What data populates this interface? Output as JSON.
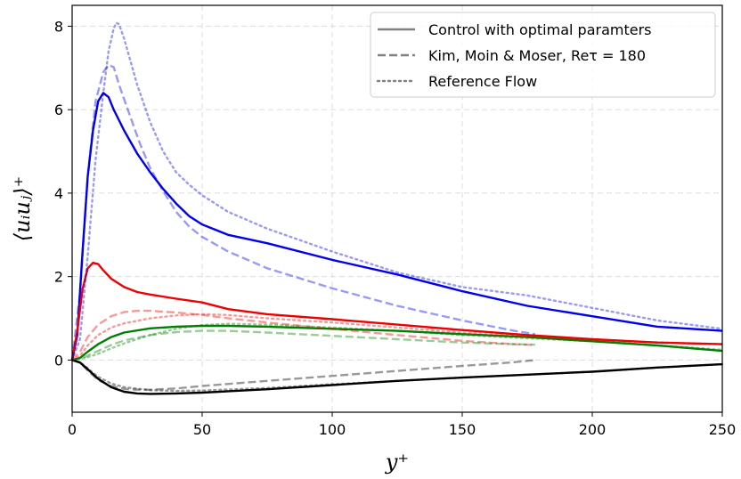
{
  "chart_data": {
    "type": "line",
    "xlabel": "y⁺",
    "ylabel": "⟨uᵢuⱼ⟩⁺",
    "xlim": [
      0,
      250
    ],
    "ylim": [
      -1.25,
      8.5
    ],
    "xticks": [
      0,
      50,
      100,
      150,
      200,
      250
    ],
    "yticks": [
      0,
      2,
      4,
      6,
      8
    ],
    "grid": true,
    "legend_position": "top-right",
    "legend": [
      {
        "label": "Control with optimal paramters",
        "style": "solid",
        "color": "#808080"
      },
      {
        "label": "Kim, Moin & Moser, Reτ = 180",
        "style": "dashed",
        "color": "#808080"
      },
      {
        "label": "Reference Flow",
        "style": "dotted",
        "color": "#808080"
      }
    ],
    "series": [
      {
        "color": "#0000ee",
        "style": "solid",
        "opacity": 1.0,
        "points": [
          [
            0,
            0
          ],
          [
            2,
            0.6
          ],
          [
            4,
            2.6
          ],
          [
            6,
            4.4
          ],
          [
            8,
            5.5
          ],
          [
            10,
            6.2
          ],
          [
            12,
            6.4
          ],
          [
            14,
            6.3
          ],
          [
            16,
            6.0
          ],
          [
            20,
            5.5
          ],
          [
            25,
            4.95
          ],
          [
            30,
            4.5
          ],
          [
            35,
            4.1
          ],
          [
            40,
            3.75
          ],
          [
            45,
            3.45
          ],
          [
            50,
            3.25
          ],
          [
            60,
            3.0
          ],
          [
            75,
            2.8
          ],
          [
            100,
            2.4
          ],
          [
            125,
            2.05
          ],
          [
            150,
            1.65
          ],
          [
            175,
            1.3
          ],
          [
            200,
            1.05
          ],
          [
            225,
            0.8
          ],
          [
            250,
            0.7
          ]
        ]
      },
      {
        "color": "#ee0000",
        "style": "solid",
        "opacity": 1.0,
        "points": [
          [
            0,
            0
          ],
          [
            2,
            0.7
          ],
          [
            4,
            1.7
          ],
          [
            6,
            2.2
          ],
          [
            8,
            2.33
          ],
          [
            10,
            2.3
          ],
          [
            12,
            2.15
          ],
          [
            15,
            1.95
          ],
          [
            20,
            1.75
          ],
          [
            25,
            1.63
          ],
          [
            30,
            1.57
          ],
          [
            40,
            1.47
          ],
          [
            50,
            1.38
          ],
          [
            60,
            1.22
          ],
          [
            75,
            1.1
          ],
          [
            100,
            0.98
          ],
          [
            125,
            0.85
          ],
          [
            150,
            0.72
          ],
          [
            175,
            0.6
          ],
          [
            200,
            0.5
          ],
          [
            225,
            0.42
          ],
          [
            250,
            0.38
          ]
        ]
      },
      {
        "color": "#008000",
        "style": "solid",
        "opacity": 1.0,
        "points": [
          [
            0,
            0
          ],
          [
            3,
            0.05
          ],
          [
            6,
            0.2
          ],
          [
            10,
            0.38
          ],
          [
            15,
            0.55
          ],
          [
            20,
            0.66
          ],
          [
            30,
            0.76
          ],
          [
            40,
            0.8
          ],
          [
            50,
            0.82
          ],
          [
            60,
            0.82
          ],
          [
            75,
            0.8
          ],
          [
            100,
            0.75
          ],
          [
            125,
            0.7
          ],
          [
            150,
            0.62
          ],
          [
            175,
            0.55
          ],
          [
            200,
            0.45
          ],
          [
            225,
            0.35
          ],
          [
            250,
            0.22
          ]
        ]
      },
      {
        "color": "#000000",
        "style": "solid",
        "opacity": 1.0,
        "points": [
          [
            0,
            0
          ],
          [
            3,
            -0.06
          ],
          [
            6,
            -0.22
          ],
          [
            10,
            -0.45
          ],
          [
            15,
            -0.65
          ],
          [
            20,
            -0.76
          ],
          [
            25,
            -0.8
          ],
          [
            30,
            -0.81
          ],
          [
            40,
            -0.8
          ],
          [
            50,
            -0.78
          ],
          [
            75,
            -0.7
          ],
          [
            100,
            -0.6
          ],
          [
            125,
            -0.5
          ],
          [
            150,
            -0.42
          ],
          [
            175,
            -0.35
          ],
          [
            200,
            -0.28
          ],
          [
            225,
            -0.18
          ],
          [
            250,
            -0.1
          ]
        ]
      },
      {
        "color": "#0000ee",
        "style": "dashed",
        "opacity": 0.4,
        "points": [
          [
            0,
            0
          ],
          [
            3,
            1.6
          ],
          [
            6,
            4.4
          ],
          [
            9,
            6.2
          ],
          [
            12,
            6.9
          ],
          [
            14,
            7.07
          ],
          [
            16,
            7.02
          ],
          [
            18,
            6.6
          ],
          [
            22,
            5.9
          ],
          [
            26,
            5.2
          ],
          [
            30,
            4.6
          ],
          [
            35,
            4.05
          ],
          [
            40,
            3.55
          ],
          [
            45,
            3.2
          ],
          [
            50,
            2.95
          ],
          [
            60,
            2.6
          ],
          [
            75,
            2.2
          ],
          [
            100,
            1.72
          ],
          [
            125,
            1.3
          ],
          [
            150,
            0.95
          ],
          [
            170,
            0.7
          ],
          [
            178,
            0.62
          ]
        ]
      },
      {
        "color": "#ee0000",
        "style": "dashed",
        "opacity": 0.4,
        "points": [
          [
            0,
            0
          ],
          [
            3,
            0.2
          ],
          [
            6,
            0.55
          ],
          [
            10,
            0.85
          ],
          [
            15,
            1.05
          ],
          [
            20,
            1.15
          ],
          [
            25,
            1.18
          ],
          [
            30,
            1.18
          ],
          [
            40,
            1.14
          ],
          [
            50,
            1.08
          ],
          [
            60,
            1.0
          ],
          [
            75,
            0.9
          ],
          [
            100,
            0.75
          ],
          [
            125,
            0.6
          ],
          [
            150,
            0.46
          ],
          [
            170,
            0.38
          ],
          [
            178,
            0.36
          ]
        ]
      },
      {
        "color": "#008000",
        "style": "dashed",
        "opacity": 0.4,
        "points": [
          [
            0,
            0
          ],
          [
            5,
            0.08
          ],
          [
            10,
            0.22
          ],
          [
            15,
            0.36
          ],
          [
            20,
            0.47
          ],
          [
            30,
            0.6
          ],
          [
            40,
            0.67
          ],
          [
            50,
            0.7
          ],
          [
            60,
            0.7
          ],
          [
            75,
            0.66
          ],
          [
            100,
            0.58
          ],
          [
            125,
            0.5
          ],
          [
            150,
            0.42
          ],
          [
            170,
            0.38
          ],
          [
            178,
            0.37
          ]
        ]
      },
      {
        "color": "#000000",
        "style": "dashed",
        "opacity": 0.4,
        "points": [
          [
            0,
            0
          ],
          [
            3,
            -0.06
          ],
          [
            6,
            -0.25
          ],
          [
            10,
            -0.48
          ],
          [
            15,
            -0.62
          ],
          [
            20,
            -0.69
          ],
          [
            25,
            -0.71
          ],
          [
            30,
            -0.71
          ],
          [
            40,
            -0.68
          ],
          [
            50,
            -0.62
          ],
          [
            75,
            -0.5
          ],
          [
            100,
            -0.38
          ],
          [
            125,
            -0.26
          ],
          [
            150,
            -0.14
          ],
          [
            170,
            -0.05
          ],
          [
            178,
            0.0
          ]
        ]
      },
      {
        "color": "#0000ee",
        "style": "dotted",
        "opacity": 0.4,
        "points": [
          [
            0,
            0
          ],
          [
            3,
            0.5
          ],
          [
            6,
            2.5
          ],
          [
            9,
            4.8
          ],
          [
            12,
            6.4
          ],
          [
            14,
            7.4
          ],
          [
            16,
            7.95
          ],
          [
            17,
            8.08
          ],
          [
            18,
            8.05
          ],
          [
            20,
            7.7
          ],
          [
            25,
            6.6
          ],
          [
            30,
            5.7
          ],
          [
            35,
            5.0
          ],
          [
            40,
            4.5
          ],
          [
            45,
            4.2
          ],
          [
            50,
            3.95
          ],
          [
            60,
            3.55
          ],
          [
            75,
            3.15
          ],
          [
            100,
            2.6
          ],
          [
            125,
            2.1
          ],
          [
            150,
            1.75
          ],
          [
            175,
            1.55
          ],
          [
            200,
            1.25
          ],
          [
            225,
            0.95
          ],
          [
            250,
            0.75
          ]
        ]
      },
      {
        "color": "#ee0000",
        "style": "dotted",
        "opacity": 0.4,
        "points": [
          [
            0,
            0
          ],
          [
            3,
            0.1
          ],
          [
            6,
            0.35
          ],
          [
            10,
            0.6
          ],
          [
            15,
            0.78
          ],
          [
            20,
            0.88
          ],
          [
            30,
            1.0
          ],
          [
            40,
            1.07
          ],
          [
            50,
            1.1
          ],
          [
            60,
            1.08
          ],
          [
            75,
            1.0
          ],
          [
            100,
            0.9
          ],
          [
            125,
            0.78
          ],
          [
            150,
            0.66
          ],
          [
            175,
            0.56
          ],
          [
            200,
            0.48
          ],
          [
            225,
            0.42
          ],
          [
            250,
            0.38
          ]
        ]
      },
      {
        "color": "#008000",
        "style": "dotted",
        "opacity": 0.4,
        "points": [
          [
            0,
            0
          ],
          [
            5,
            0.05
          ],
          [
            10,
            0.15
          ],
          [
            15,
            0.28
          ],
          [
            20,
            0.4
          ],
          [
            30,
            0.6
          ],
          [
            40,
            0.75
          ],
          [
            50,
            0.84
          ],
          [
            60,
            0.87
          ],
          [
            75,
            0.85
          ],
          [
            100,
            0.78
          ],
          [
            125,
            0.7
          ],
          [
            150,
            0.6
          ],
          [
            175,
            0.52
          ],
          [
            200,
            0.45
          ],
          [
            225,
            0.35
          ],
          [
            250,
            0.25
          ]
        ]
      },
      {
        "color": "#000000",
        "style": "dotted",
        "opacity": 0.4,
        "points": [
          [
            0,
            0
          ],
          [
            3,
            -0.05
          ],
          [
            6,
            -0.2
          ],
          [
            10,
            -0.4
          ],
          [
            15,
            -0.56
          ],
          [
            20,
            -0.65
          ],
          [
            30,
            -0.72
          ],
          [
            40,
            -0.74
          ],
          [
            50,
            -0.73
          ],
          [
            75,
            -0.67
          ],
          [
            100,
            -0.58
          ],
          [
            125,
            -0.5
          ],
          [
            150,
            -0.42
          ],
          [
            175,
            -0.35
          ],
          [
            200,
            -0.28
          ],
          [
            225,
            -0.18
          ],
          [
            250,
            -0.1
          ]
        ]
      }
    ]
  }
}
